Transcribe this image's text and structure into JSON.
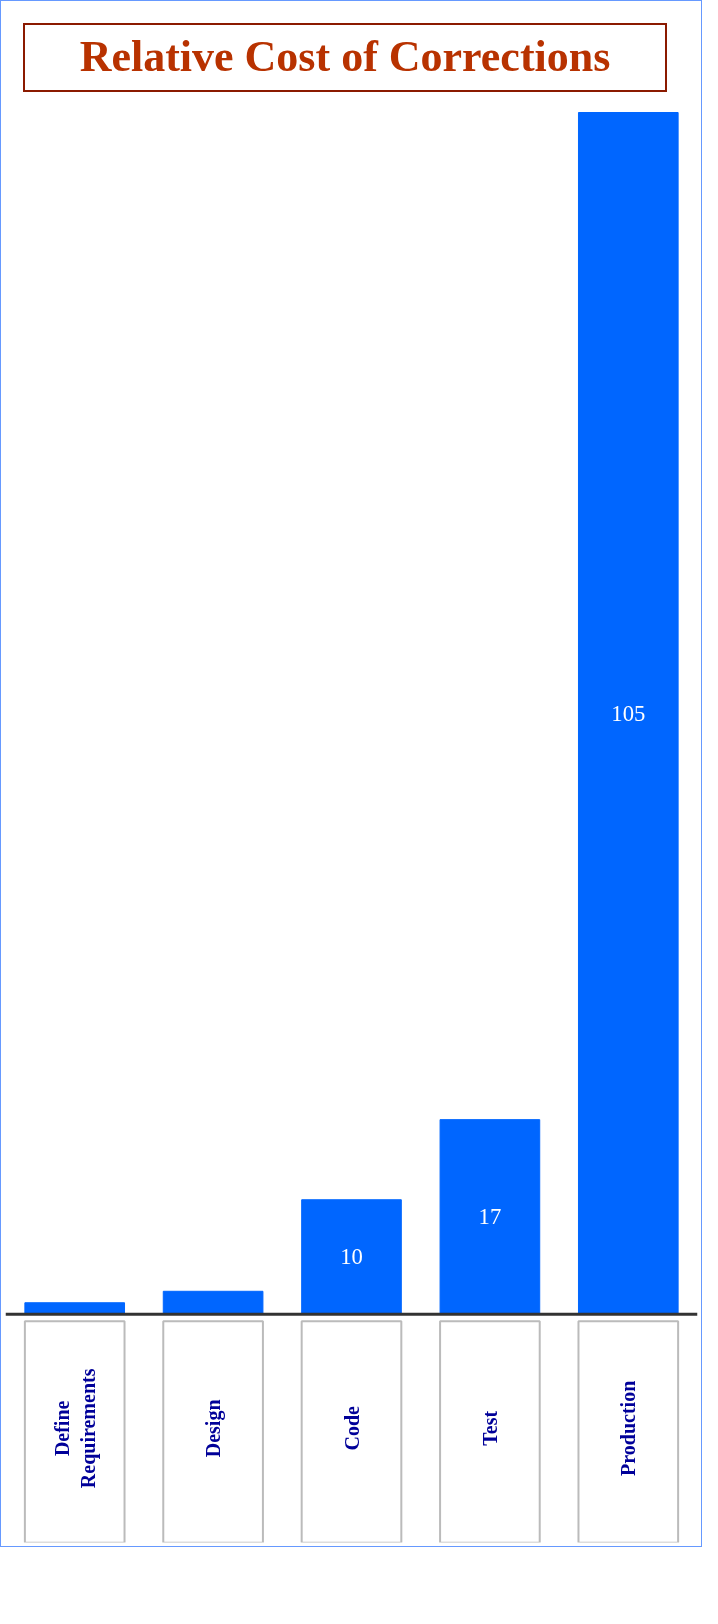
{
  "chart_data": {
    "type": "bar",
    "title": "Relative Cost of Corrections",
    "categories": [
      "Define Requirements",
      "Design",
      "Code",
      "Test",
      "Production"
    ],
    "values": [
      1,
      2,
      10,
      17,
      105
    ],
    "value_labels": [
      null,
      null,
      "10",
      "17",
      "105"
    ],
    "color": "#0066ff"
  }
}
